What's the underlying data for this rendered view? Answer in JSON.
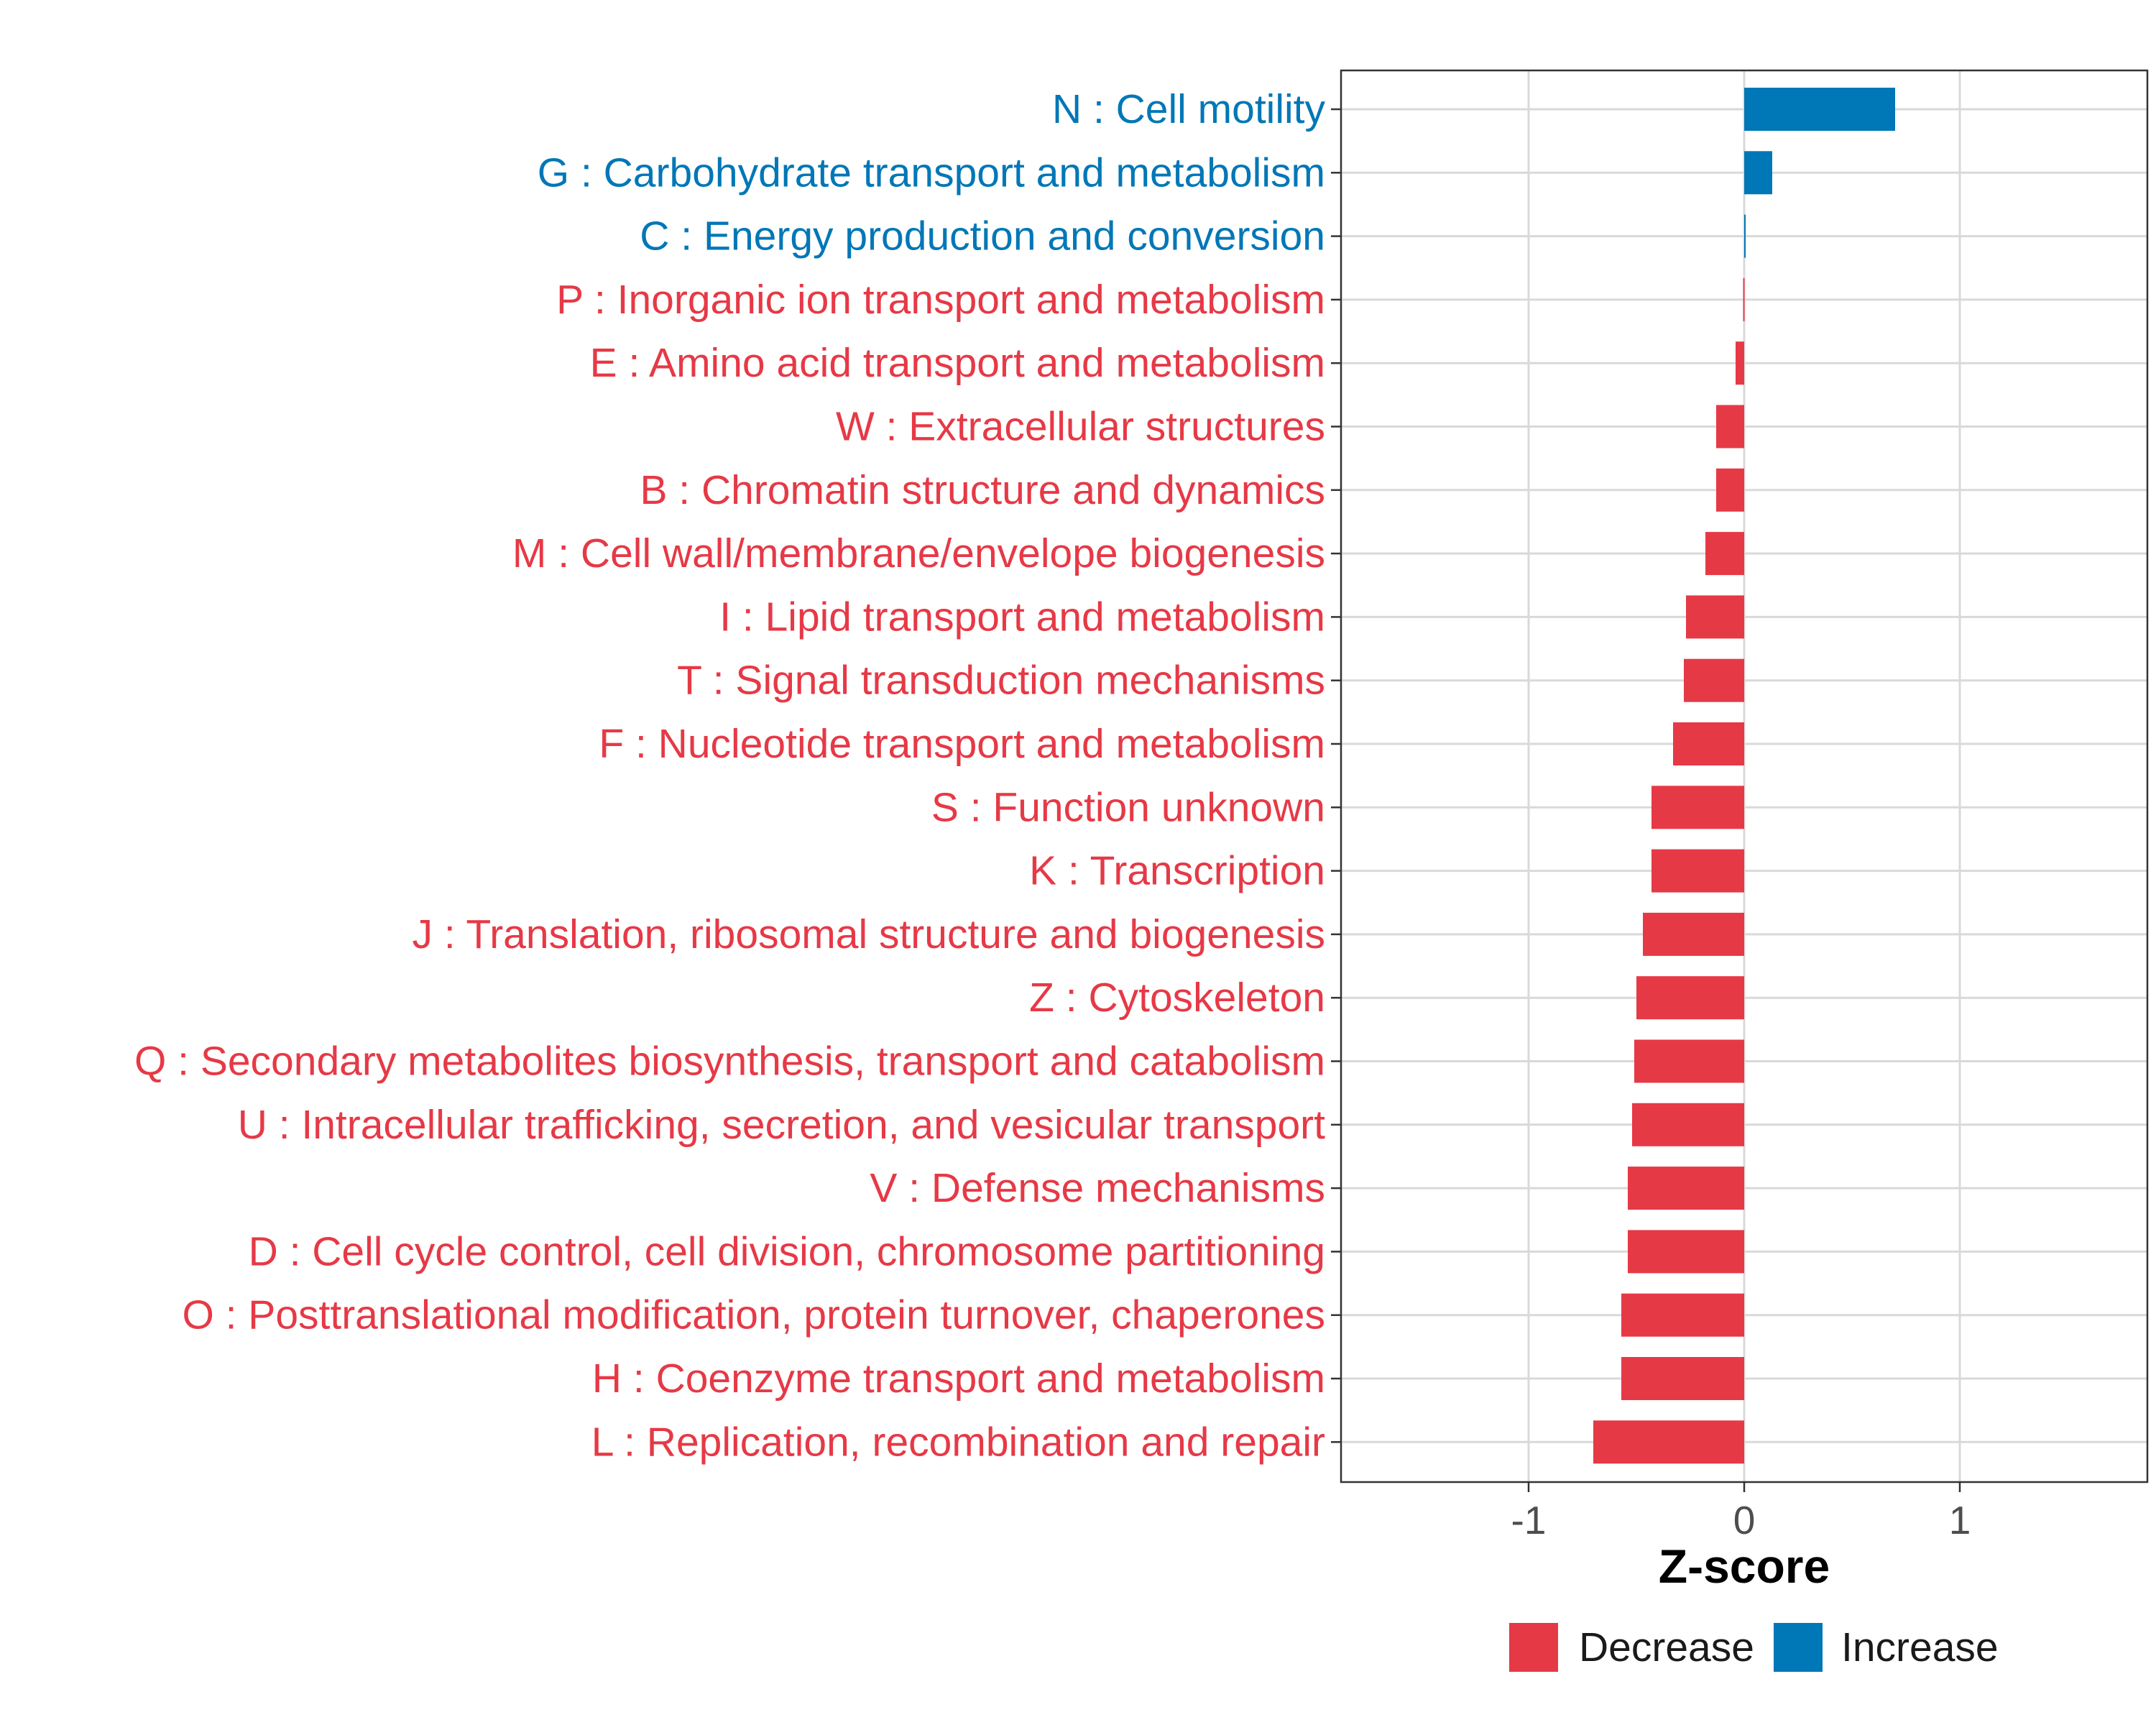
{
  "chart_data": {
    "type": "bar",
    "orientation": "horizontal",
    "title": "",
    "xlabel": "Z-score",
    "ylabel": "",
    "xlim": [
      -1.87,
      1.87
    ],
    "xticks": [
      -1,
      0,
      1
    ],
    "xtick_labels": [
      "-1",
      "0",
      "1"
    ],
    "grid": true,
    "colors": {
      "Decrease": "#e63946",
      "Increase": "#0077b6"
    },
    "categories": [
      "N : Cell motility",
      "G : Carbohydrate transport and metabolism",
      "C : Energy production and conversion",
      "P : Inorganic ion transport and metabolism",
      "E : Amino acid transport and metabolism",
      "W : Extracellular structures",
      "B : Chromatin structure and dynamics",
      "M : Cell wall/membrane/envelope biogenesis",
      "I : Lipid transport and metabolism",
      "T : Signal transduction mechanisms",
      "F : Nucleotide transport and metabolism",
      "S : Function unknown",
      "K : Transcription",
      "J : Translation, ribosomal structure and biogenesis",
      "Z : Cytoskeleton",
      "Q : Secondary metabolites biosynthesis, transport and catabolism",
      "U : Intracellular trafficking, secretion, and vesicular transport",
      "V : Defense mechanisms",
      "D : Cell cycle control, cell division, chromosome partitioning",
      "O : Posttranslational modification, protein turnover, chaperones",
      "H : Coenzyme transport and metabolism",
      "L : Replication, recombination and repair"
    ],
    "values": [
      0.7,
      0.13,
      0.005,
      -0.005,
      -0.04,
      -0.13,
      -0.13,
      -0.18,
      -0.27,
      -0.28,
      -0.33,
      -0.43,
      -0.43,
      -0.47,
      -0.5,
      -0.51,
      -0.52,
      -0.54,
      -0.54,
      -0.57,
      -0.57,
      -0.7
    ],
    "groups": [
      "Increase",
      "Increase",
      "Increase",
      "Decrease",
      "Decrease",
      "Decrease",
      "Decrease",
      "Decrease",
      "Decrease",
      "Decrease",
      "Decrease",
      "Decrease",
      "Decrease",
      "Decrease",
      "Decrease",
      "Decrease",
      "Decrease",
      "Decrease",
      "Decrease",
      "Decrease",
      "Decrease",
      "Decrease"
    ],
    "legend": {
      "position": "bottom",
      "entries": [
        "Decrease",
        "Increase"
      ]
    }
  }
}
